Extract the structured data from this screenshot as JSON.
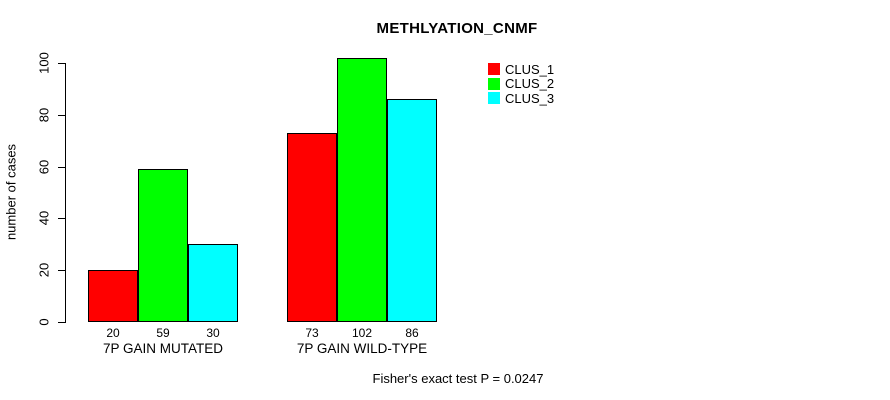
{
  "figure": {
    "title": "METHLYATION_CNMF",
    "y_axis_label": "number of cases",
    "footer_note": "Fisher's exact test P = 0.0247"
  },
  "chart_data": {
    "type": "bar",
    "title": "METHLYATION_CNMF",
    "subtitle": "",
    "xlabel": "",
    "ylabel": "number of cases",
    "categories": [
      "7P GAIN MUTATED",
      "7P GAIN WILD-TYPE"
    ],
    "series": [
      {
        "name": "CLUS_1",
        "color": "#ff0000",
        "values": [
          20,
          73
        ]
      },
      {
        "name": "CLUS_2",
        "color": "#00ff00",
        "values": [
          59,
          102
        ]
      },
      {
        "name": "CLUS_3",
        "color": "#00ffff",
        "values": [
          30,
          86
        ]
      }
    ],
    "bar_value_labels": [
      [
        "20",
        "59",
        "30"
      ],
      [
        "73",
        "102",
        "86"
      ]
    ],
    "yticks": [
      0,
      20,
      40,
      60,
      80,
      100
    ],
    "ylim": [
      0,
      102
    ],
    "grid": false,
    "legend": {
      "position": "top-right",
      "entries": [
        "CLUS_1",
        "CLUS_2",
        "CLUS_3"
      ]
    },
    "annotation": "Fisher's exact test P = 0.0247"
  }
}
